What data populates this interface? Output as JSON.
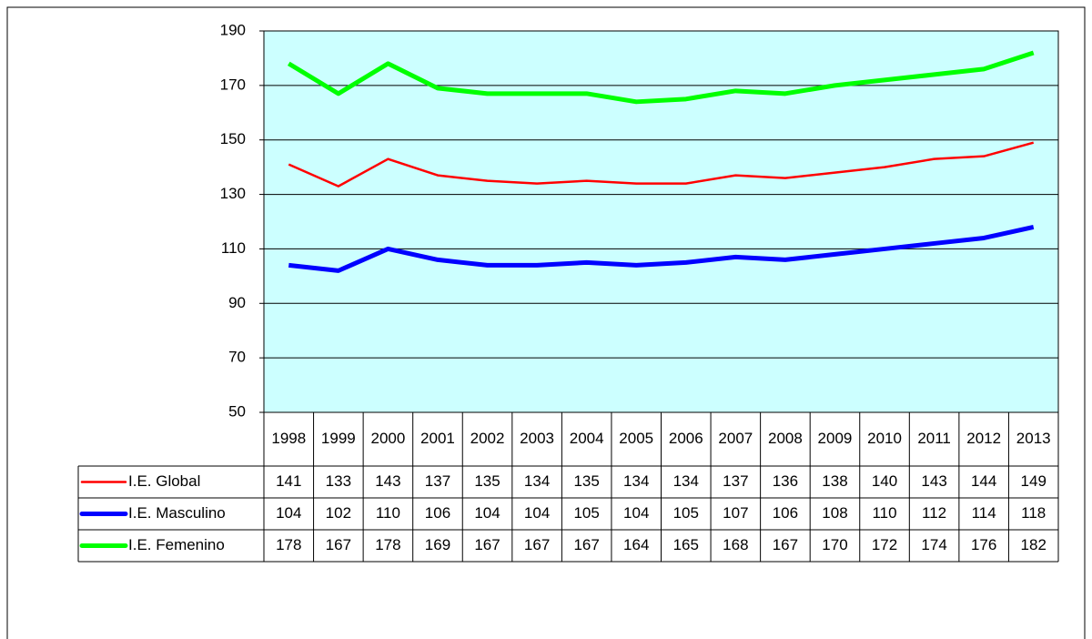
{
  "chart_data": {
    "type": "line",
    "categories": [
      "1998",
      "1999",
      "2000",
      "2001",
      "2002",
      "2003",
      "2004",
      "2005",
      "2006",
      "2007",
      "2008",
      "2009",
      "2010",
      "2011",
      "2012",
      "2013"
    ],
    "series": [
      {
        "name": "I.E. Global",
        "color": "#ff0000",
        "values": [
          141,
          133,
          143,
          137,
          135,
          134,
          135,
          134,
          134,
          137,
          136,
          138,
          140,
          143,
          144,
          149
        ]
      },
      {
        "name": "I.E. Masculino",
        "color": "#0000ff",
        "values": [
          104,
          102,
          110,
          106,
          104,
          104,
          105,
          104,
          105,
          107,
          106,
          108,
          110,
          112,
          114,
          118
        ]
      },
      {
        "name": "I.E. Femenino",
        "color": "#00ff00",
        "values": [
          178,
          167,
          178,
          169,
          167,
          167,
          167,
          164,
          165,
          168,
          167,
          170,
          172,
          174,
          176,
          182
        ]
      }
    ],
    "ylim": [
      50,
      190
    ],
    "yticks": [
      50,
      70,
      90,
      110,
      130,
      150,
      170,
      190
    ],
    "grid": true
  }
}
